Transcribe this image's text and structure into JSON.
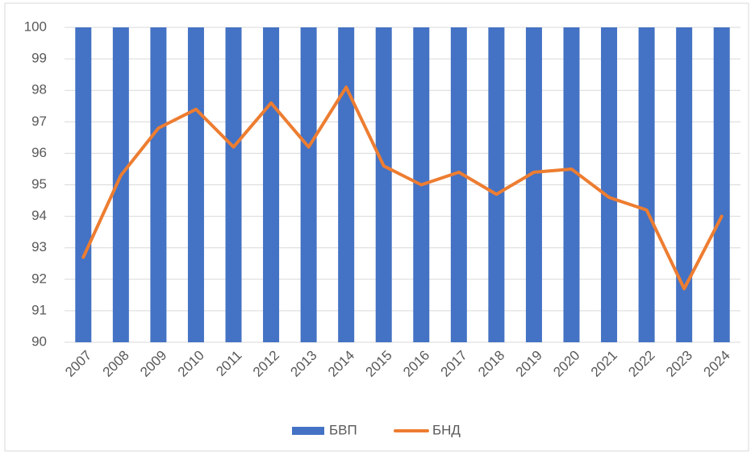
{
  "chart_data": {
    "type": "bar_line",
    "categories": [
      "2007",
      "2008",
      "2009",
      "2010",
      "2011",
      "2012",
      "2013",
      "2014",
      "2015",
      "2016",
      "2017",
      "2018",
      "2019",
      "2020",
      "2021",
      "2022",
      "2023",
      "2024"
    ],
    "series": [
      {
        "name": "БВП",
        "type": "bar",
        "color": "#4472c4",
        "values": [
          100,
          100,
          100,
          100,
          100,
          100,
          100,
          100,
          100,
          100,
          100,
          100,
          100,
          100,
          100,
          100,
          100,
          100
        ]
      },
      {
        "name": "БНД",
        "type": "line",
        "color": "#ed7d31",
        "values": [
          92.7,
          95.3,
          96.8,
          97.4,
          96.2,
          97.6,
          96.2,
          98.1,
          95.6,
          95.0,
          95.4,
          94.7,
          95.4,
          95.5,
          94.6,
          94.2,
          91.7,
          94.0
        ]
      }
    ],
    "ylim": [
      90,
      100
    ],
    "yticks": [
      90,
      91,
      92,
      93,
      94,
      95,
      96,
      97,
      98,
      99,
      100
    ],
    "grid": true,
    "legend": "bottom"
  }
}
